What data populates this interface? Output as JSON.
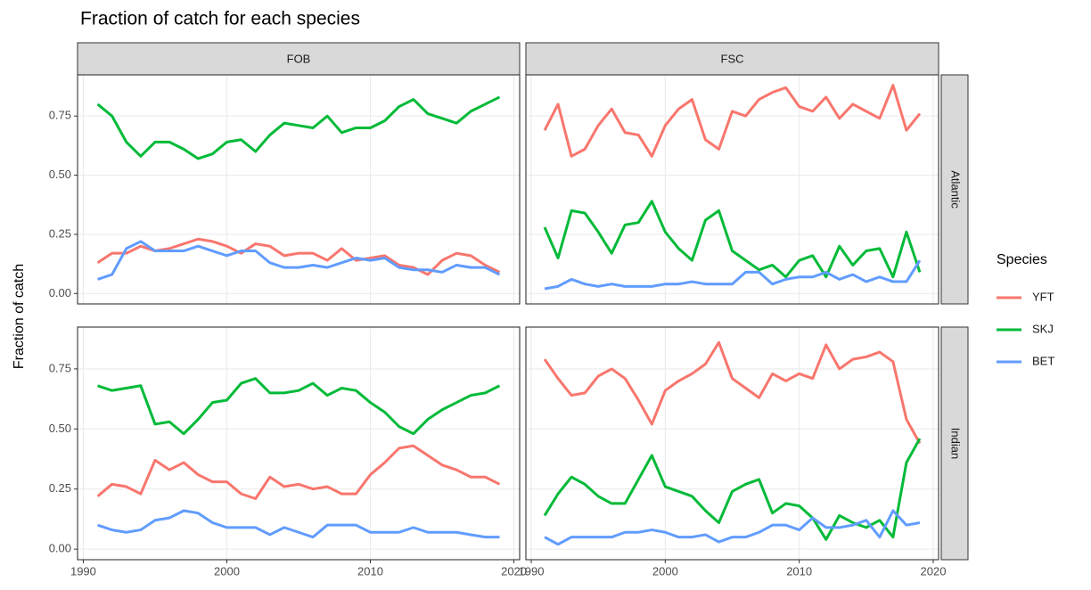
{
  "chart_data": {
    "type": "line",
    "title": "Fraction of catch for each species",
    "ylabel": "Fraction of catch",
    "legend_title": "Species",
    "grid": true,
    "columns": [
      "FOB",
      "FSC"
    ],
    "x": [
      1991,
      1992,
      1993,
      1994,
      1995,
      1996,
      1997,
      1998,
      1999,
      2000,
      2001,
      2002,
      2003,
      2004,
      2005,
      2006,
      2007,
      2008,
      2009,
      2010,
      2011,
      2012,
      2013,
      2014,
      2015,
      2016,
      2017,
      2018,
      2019
    ],
    "xlim": [
      1989.6,
      2020.4
    ],
    "xticks": [
      1990,
      2000,
      2010,
      2020
    ],
    "ylim": [
      -0.044,
      0.924
    ],
    "yticks": [
      {
        "value": 0,
        "label": "0.00"
      },
      0.25,
      {
        "value": 0.5,
        "label": "0.50"
      },
      0.75
    ],
    "rows": [
      {
        "label": "Atlantic",
        "panels": [
          {
            "series": [
              {
                "name": "YFT",
                "color": "#f8766d",
                "values": [
                  0.13,
                  0.17,
                  0.17,
                  0.2,
                  0.18,
                  0.19,
                  0.21,
                  0.23,
                  0.22,
                  0.2,
                  0.17,
                  0.21,
                  0.2,
                  0.16,
                  0.17,
                  0.17,
                  0.14,
                  0.19,
                  0.14,
                  0.15,
                  0.16,
                  0.12,
                  0.11,
                  0.08,
                  0.14,
                  0.17,
                  0.16,
                  0.12,
                  0.09
                ]
              },
              {
                "name": "SKJ",
                "color": "#00ba38",
                "values": [
                  0.8,
                  0.75,
                  0.64,
                  0.58,
                  0.64,
                  0.64,
                  0.61,
                  0.57,
                  0.59,
                  0.64,
                  0.65,
                  0.6,
                  0.67,
                  0.72,
                  0.71,
                  0.7,
                  0.75,
                  0.68,
                  0.7,
                  0.7,
                  0.73,
                  0.79,
                  0.82,
                  0.76,
                  0.74,
                  0.72,
                  0.77,
                  0.8,
                  0.83
                ]
              },
              {
                "name": "BET",
                "color": "#619cff",
                "values": [
                  0.06,
                  0.08,
                  0.19,
                  0.22,
                  0.18,
                  0.18,
                  0.18,
                  0.2,
                  0.18,
                  0.16,
                  0.18,
                  0.18,
                  0.13,
                  0.11,
                  0.11,
                  0.12,
                  0.11,
                  0.13,
                  0.15,
                  0.14,
                  0.15,
                  0.11,
                  0.1,
                  0.1,
                  0.09,
                  0.12,
                  0.11,
                  0.11,
                  0.08
                ]
              }
            ]
          },
          {
            "series": [
              {
                "name": "YFT",
                "color": "#f8766d",
                "values": [
                  0.69,
                  0.8,
                  0.58,
                  0.61,
                  0.71,
                  0.78,
                  0.68,
                  0.67,
                  0.58,
                  0.71,
                  0.78,
                  0.82,
                  0.65,
                  0.61,
                  0.77,
                  0.75,
                  0.82,
                  0.85,
                  0.87,
                  0.79,
                  0.77,
                  0.83,
                  0.74,
                  0.8,
                  0.77,
                  0.74,
                  0.88,
                  0.69,
                  0.76
                ]
              },
              {
                "name": "SKJ",
                "color": "#00ba38",
                "values": [
                  0.28,
                  0.15,
                  0.35,
                  0.34,
                  0.26,
                  0.17,
                  0.29,
                  0.3,
                  0.39,
                  0.26,
                  0.19,
                  0.14,
                  0.31,
                  0.35,
                  0.18,
                  0.14,
                  0.1,
                  0.12,
                  0.07,
                  0.14,
                  0.16,
                  0.07,
                  0.2,
                  0.12,
                  0.18,
                  0.19,
                  0.07,
                  0.26,
                  0.09
                ]
              },
              {
                "name": "BET",
                "color": "#619cff",
                "values": [
                  0.02,
                  0.03,
                  0.06,
                  0.04,
                  0.03,
                  0.04,
                  0.03,
                  0.03,
                  0.03,
                  0.04,
                  0.04,
                  0.05,
                  0.04,
                  0.04,
                  0.04,
                  0.09,
                  0.09,
                  0.04,
                  0.06,
                  0.07,
                  0.07,
                  0.09,
                  0.06,
                  0.08,
                  0.05,
                  0.07,
                  0.05,
                  0.05,
                  0.14
                ]
              }
            ]
          }
        ]
      },
      {
        "label": "Indian",
        "panels": [
          {
            "series": [
              {
                "name": "YFT",
                "color": "#f8766d",
                "values": [
                  0.22,
                  0.27,
                  0.26,
                  0.23,
                  0.37,
                  0.33,
                  0.36,
                  0.31,
                  0.28,
                  0.28,
                  0.23,
                  0.21,
                  0.3,
                  0.26,
                  0.27,
                  0.25,
                  0.26,
                  0.23,
                  0.23,
                  0.31,
                  0.36,
                  0.42,
                  0.43,
                  0.39,
                  0.35,
                  0.33,
                  0.3,
                  0.3,
                  0.27
                ]
              },
              {
                "name": "SKJ",
                "color": "#00ba38",
                "values": [
                  0.68,
                  0.66,
                  0.67,
                  0.68,
                  0.52,
                  0.53,
                  0.48,
                  0.54,
                  0.61,
                  0.62,
                  0.69,
                  0.71,
                  0.65,
                  0.65,
                  0.66,
                  0.69,
                  0.64,
                  0.67,
                  0.66,
                  0.61,
                  0.57,
                  0.51,
                  0.48,
                  0.54,
                  0.58,
                  0.61,
                  0.64,
                  0.65,
                  0.68
                ]
              },
              {
                "name": "BET",
                "color": "#619cff",
                "values": [
                  0.1,
                  0.08,
                  0.07,
                  0.08,
                  0.12,
                  0.13,
                  0.16,
                  0.15,
                  0.11,
                  0.09,
                  0.09,
                  0.09,
                  0.06,
                  0.09,
                  0.07,
                  0.05,
                  0.1,
                  0.1,
                  0.1,
                  0.07,
                  0.07,
                  0.07,
                  0.09,
                  0.07,
                  0.07,
                  0.07,
                  0.06,
                  0.05,
                  0.05
                ]
              }
            ]
          },
          {
            "series": [
              {
                "name": "YFT",
                "color": "#f8766d",
                "values": [
                  0.79,
                  0.71,
                  0.64,
                  0.65,
                  0.72,
                  0.75,
                  0.71,
                  0.62,
                  0.52,
                  0.66,
                  0.7,
                  0.73,
                  0.77,
                  0.86,
                  0.71,
                  0.67,
                  0.63,
                  0.73,
                  0.7,
                  0.73,
                  0.71,
                  0.85,
                  0.75,
                  0.79,
                  0.8,
                  0.82,
                  0.78,
                  0.54,
                  0.44
                ]
              },
              {
                "name": "SKJ",
                "color": "#00ba38",
                "values": [
                  0.14,
                  0.23,
                  0.3,
                  0.27,
                  0.22,
                  0.19,
                  0.19,
                  0.29,
                  0.39,
                  0.26,
                  0.24,
                  0.22,
                  0.16,
                  0.11,
                  0.24,
                  0.27,
                  0.29,
                  0.15,
                  0.19,
                  0.18,
                  0.13,
                  0.04,
                  0.14,
                  0.11,
                  0.09,
                  0.12,
                  0.05,
                  0.36,
                  0.46
                ]
              },
              {
                "name": "BET",
                "color": "#619cff",
                "values": [
                  0.05,
                  0.02,
                  0.05,
                  0.05,
                  0.05,
                  0.05,
                  0.07,
                  0.07,
                  0.08,
                  0.07,
                  0.05,
                  0.05,
                  0.06,
                  0.03,
                  0.05,
                  0.05,
                  0.07,
                  0.1,
                  0.1,
                  0.08,
                  0.13,
                  0.09,
                  0.09,
                  0.1,
                  0.12,
                  0.05,
                  0.16,
                  0.1,
                  0.11
                ]
              }
            ]
          }
        ]
      }
    ]
  }
}
